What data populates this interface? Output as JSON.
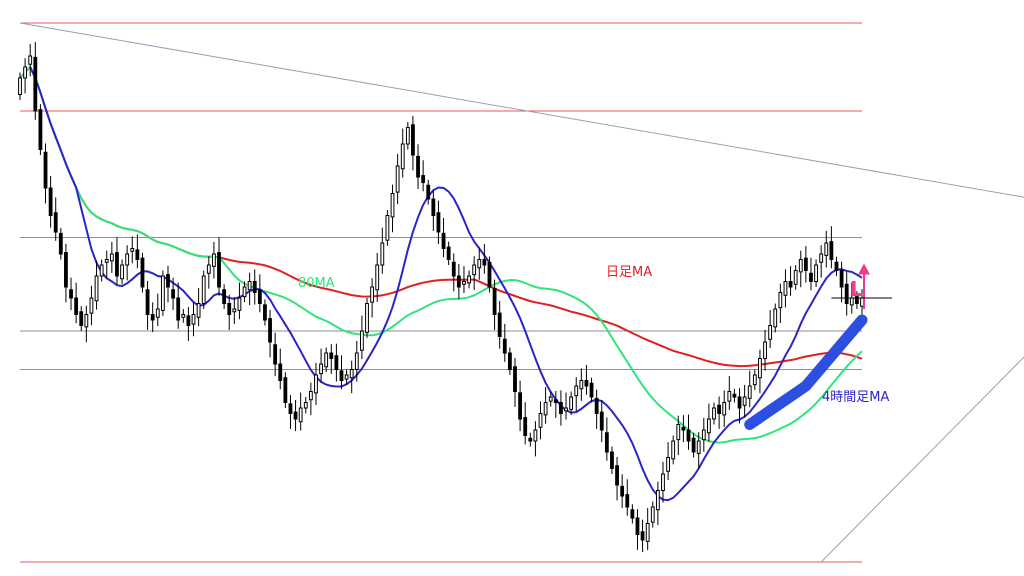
{
  "chart_data": {
    "type": "candlestick",
    "title": "",
    "xlabel": "",
    "ylabel": "",
    "ylim": [
      0,
      100
    ],
    "grid": false,
    "colors": {
      "candle": "#000000",
      "horizontal_red": "#e8545c",
      "horizontal_gray": "#8a8f9a",
      "trend_line": "#9aa0b4",
      "ma_80": "#2ee57a",
      "ma_daily": "#e02020",
      "ma_4h": "#2b24c8",
      "ma_4h_highlight": "#2d4fe0",
      "arrow": "#f03c8c"
    },
    "annotations": {
      "ma_80_label": "80MA",
      "ma_daily_label": "日足MA",
      "ma_4h_label": "4時間足MA",
      "entry_marker": "L"
    },
    "horizontal_levels": [
      {
        "value": 98,
        "color": "red"
      },
      {
        "value": 82,
        "color": "red"
      },
      {
        "value": 59,
        "color": "gray"
      },
      {
        "value": 42,
        "color": "gray"
      },
      {
        "value": 35,
        "color": "gray"
      },
      {
        "value": 0,
        "color": "red"
      }
    ],
    "trend_lines": [
      {
        "x1": 0,
        "y1": 98,
        "x2": 205,
        "y2": 65
      },
      {
        "x1": 157,
        "y1": 0,
        "x2": 205,
        "y2": 45
      }
    ],
    "close": [
      88,
      90,
      92,
      82,
      75,
      68,
      63,
      60,
      56,
      50,
      48,
      45,
      43,
      45,
      48,
      52,
      54,
      55,
      56,
      52,
      54,
      56,
      57,
      55,
      50,
      45,
      44,
      46,
      52,
      50,
      48,
      44,
      45,
      43,
      45,
      47,
      52,
      54,
      56,
      50,
      47,
      45,
      46,
      48,
      50,
      51,
      49,
      47,
      44,
      40,
      36,
      33,
      29,
      27,
      26,
      28,
      29,
      31,
      34,
      36,
      38,
      37,
      35,
      33,
      34,
      35,
      38,
      42,
      47,
      50,
      54,
      58,
      63,
      67,
      72,
      76,
      79,
      74,
      70,
      69,
      66,
      63,
      60,
      57,
      55,
      52,
      50,
      51,
      52,
      54,
      55,
      54,
      50,
      45,
      41,
      38,
      35,
      31,
      26,
      23,
      22,
      24,
      27,
      29,
      30,
      29,
      27,
      28,
      30,
      32,
      33,
      32,
      30,
      27,
      24,
      20,
      17,
      14,
      12,
      10,
      8,
      5,
      4,
      7,
      10,
      13,
      16,
      19,
      22,
      25,
      24,
      22,
      20,
      22,
      24,
      26,
      28,
      27,
      29,
      31,
      30,
      28,
      30,
      32,
      34,
      37,
      40,
      43,
      46,
      49,
      51,
      50,
      53,
      55,
      53,
      51,
      54,
      56,
      58,
      55,
      53,
      50,
      47,
      48,
      47,
      48
    ]
  }
}
